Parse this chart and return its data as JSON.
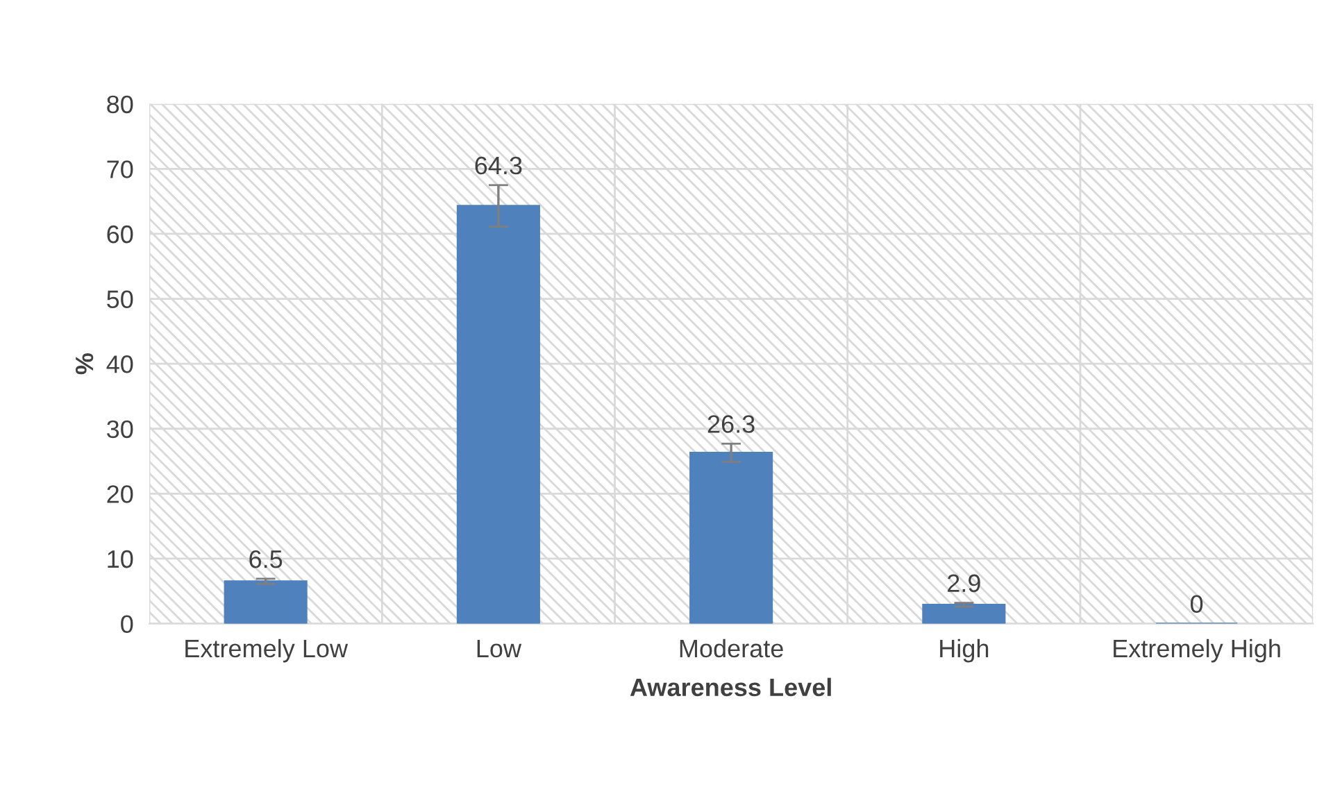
{
  "chart_data": {
    "type": "bar",
    "xlabel": "Awareness Level",
    "ylabel": "%",
    "categories": [
      "Extremely Low",
      "Low",
      "Moderate",
      "High",
      "Extremely High"
    ],
    "values": [
      6.5,
      64.3,
      26.3,
      2.9,
      0
    ],
    "errors": [
      0.4,
      3.2,
      1.4,
      0.3,
      null
    ],
    "color": "#4f81bd",
    "ylim": [
      0,
      80
    ],
    "yticks": [
      0,
      10,
      20,
      30,
      40,
      50,
      60,
      70,
      80
    ],
    "grid": true,
    "data_labels": true
  }
}
